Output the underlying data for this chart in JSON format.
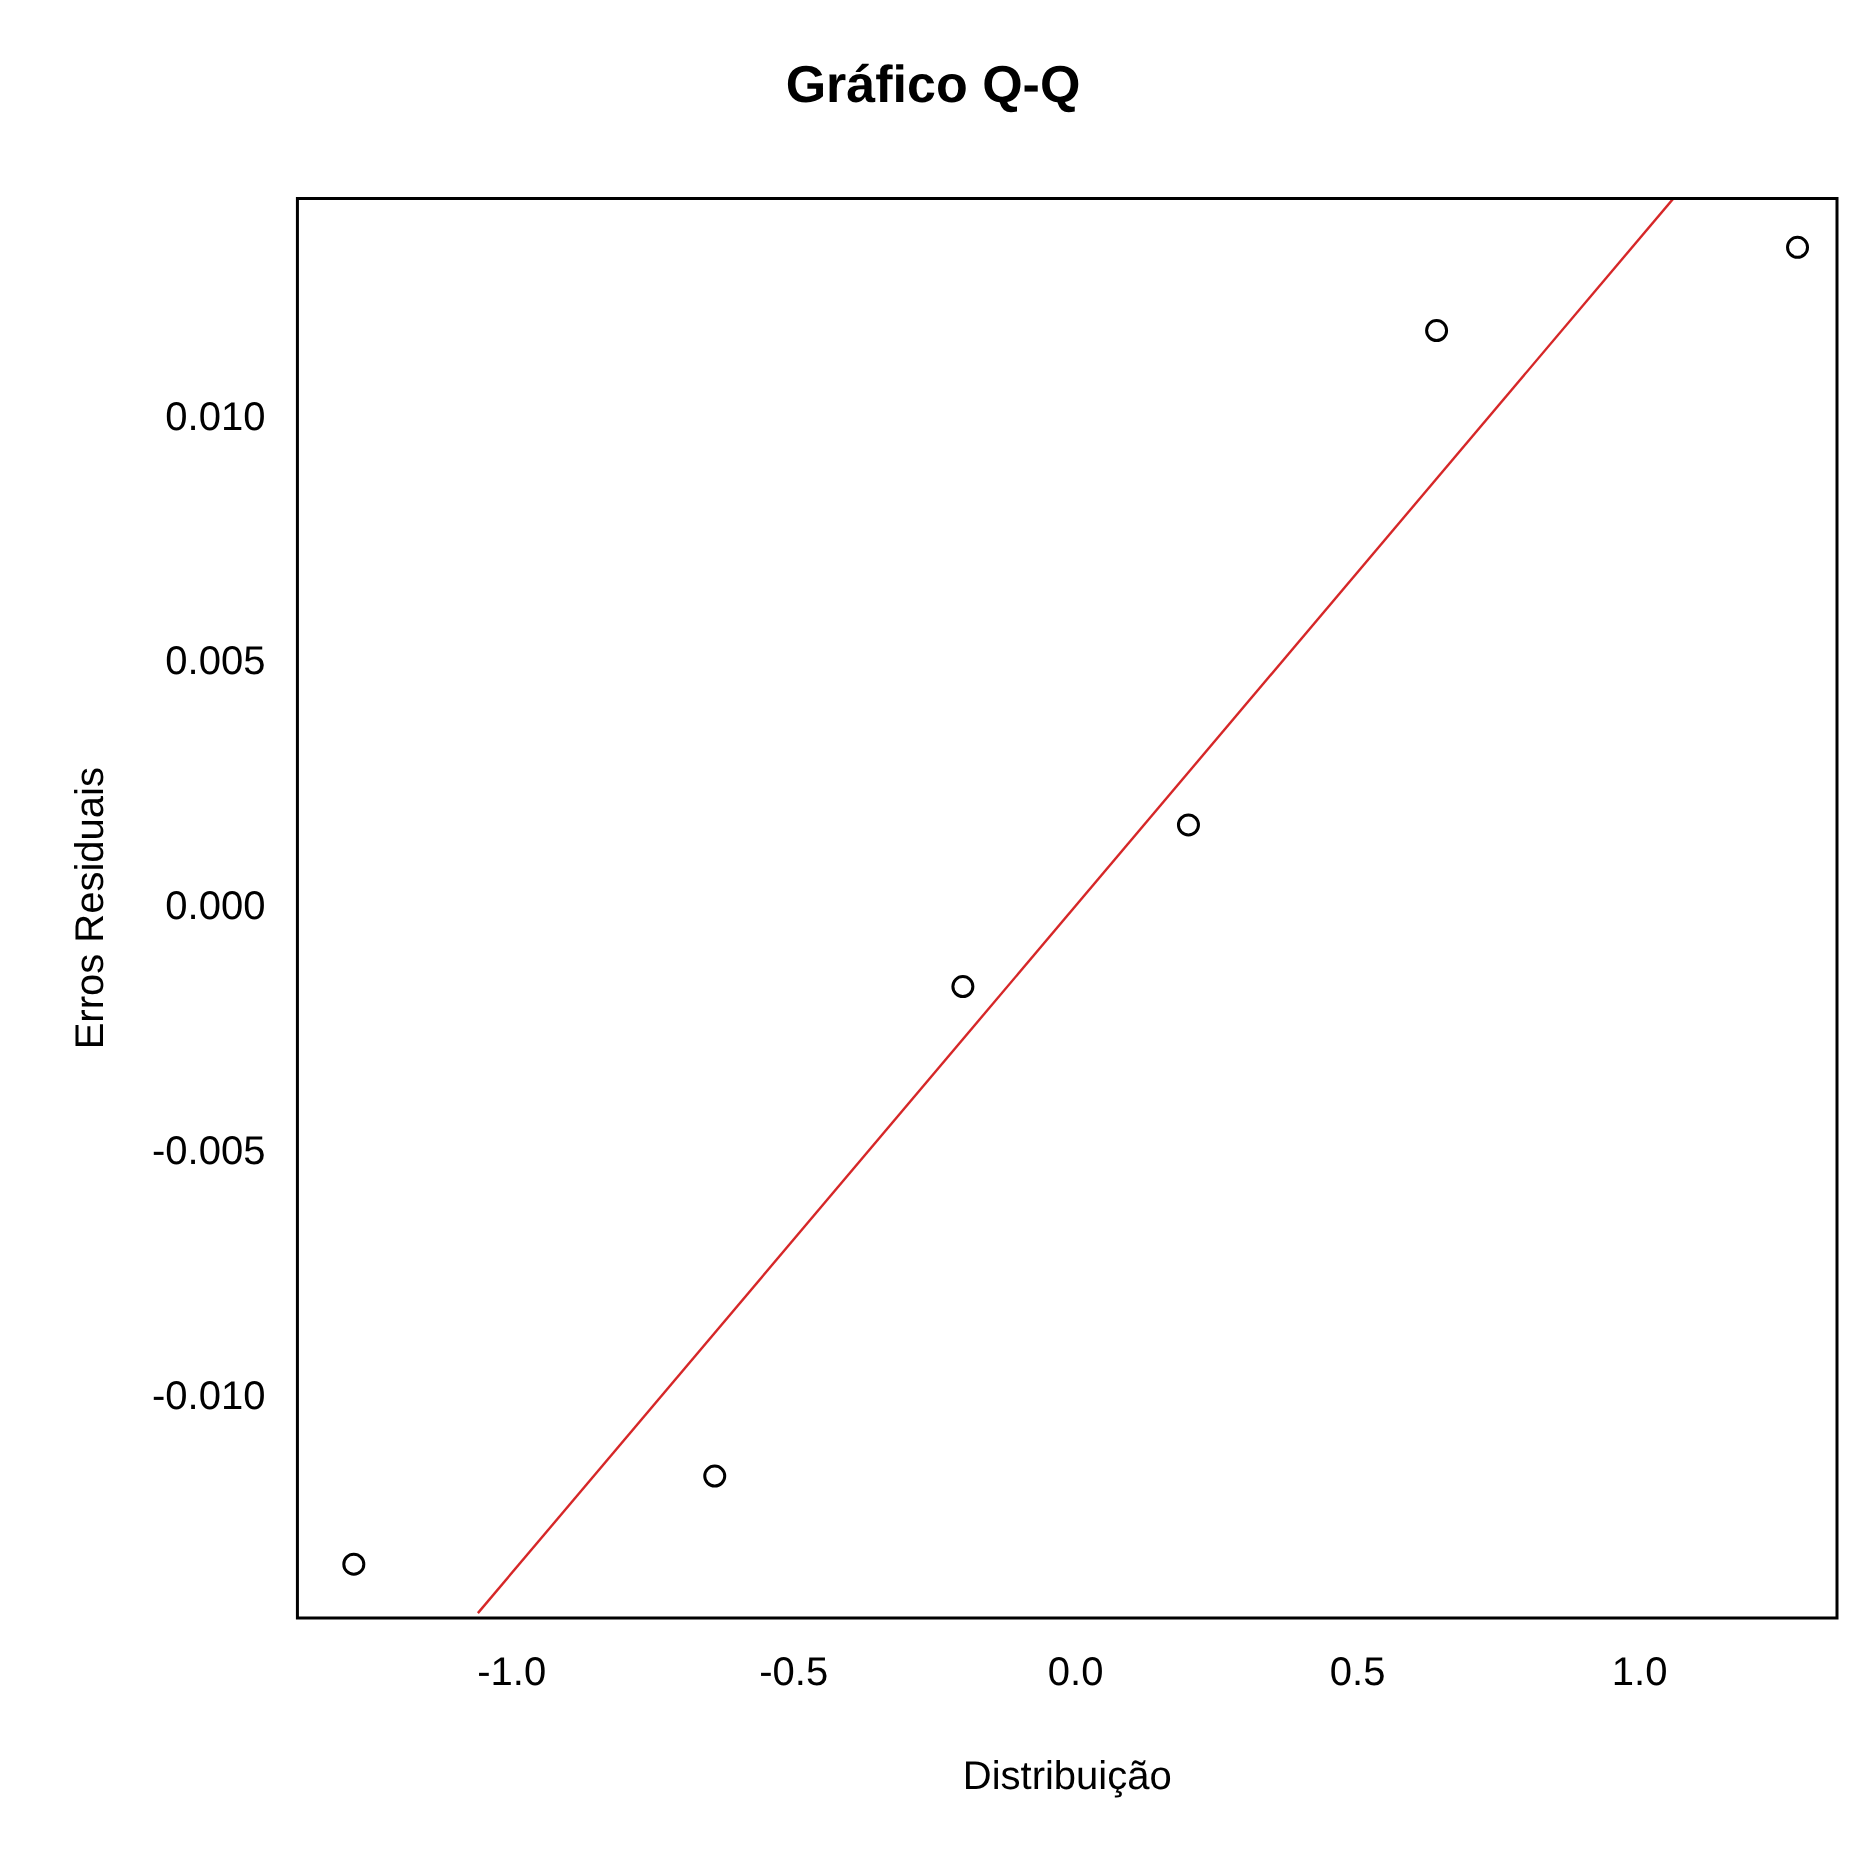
{
  "chart_data": {
    "type": "scatter",
    "title": "Gráfico Q-Q",
    "xlabel": "Distribuição",
    "ylabel": "Erros Residuais",
    "series": [
      {
        "color": "#000000",
        "marker": "circle",
        "x": [
          -1.28,
          -0.64,
          -0.2,
          0.2,
          0.64,
          1.28
        ],
        "values": [
          -0.0134,
          -0.0116,
          -0.0016,
          0.0017,
          0.0118,
          0.0135
        ]
      },
      {
        "type": "line",
        "color": "#d62728",
        "marker": "none",
        "x": [
          -1.06,
          1.06
        ],
        "values": [
          -0.0144,
          0.0145
        ]
      }
    ],
    "xlim": [
      -1.38,
      1.35
    ],
    "ylim": [
      -0.0145,
      0.0145
    ],
    "xticks": [
      {
        "value": -1,
        "label": "-1.0"
      },
      {
        "value": -0.5,
        "label": "-0.5"
      },
      {
        "value": 0,
        "label": "0.0"
      },
      {
        "value": 0.5,
        "label": "0.5"
      },
      {
        "value": 1,
        "label": "1.0"
      }
    ],
    "yticks": [
      {
        "value": -0.01,
        "label": "-0.010"
      },
      {
        "value": -0.005,
        "label": "-0.005"
      },
      {
        "value": 0,
        "label": "0.000"
      },
      {
        "value": 0.005,
        "label": "0.005"
      },
      {
        "value": 0.01,
        "label": "0.010"
      }
    ],
    "grid": false,
    "legend": false
  }
}
